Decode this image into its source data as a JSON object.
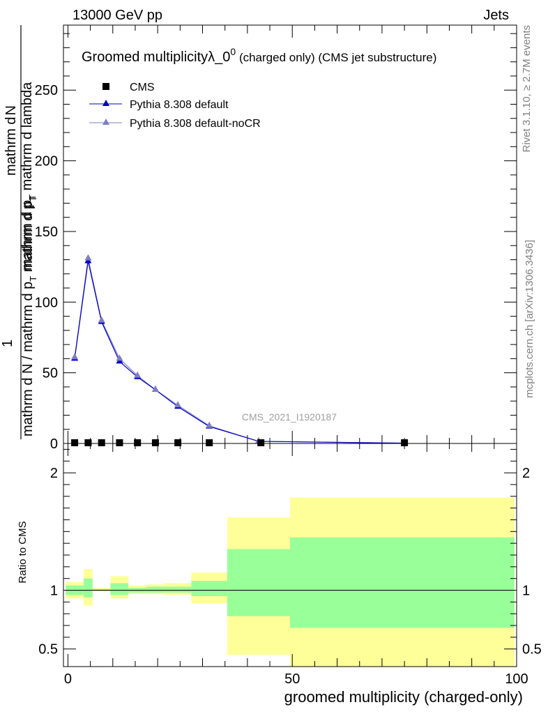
{
  "header": {
    "left": "13000 GeV pp",
    "right": "Jets"
  },
  "side_labels": {
    "rivet": "Rivet 3.1.10, ≥ 2.7M events",
    "mcplots": "mcplots.cern.ch [arXiv:1306.3436]"
  },
  "chart_data": [
    {
      "type": "line",
      "title_main": "Groomed multiplicityλ_0",
      "title_sup": "0",
      "title_rest": " (charged only) (CMS jet substructure)",
      "watermark": "CMS_2021_I1920187",
      "ylabel_top_1": "mathrm d",
      "ylabel_top_2": "N",
      "ylabel_top_3": "mathrm d p",
      "ylabel_top_3_sub": "T",
      "ylabel_top_4": "mathrm d lambda",
      "ylabel_one": "1",
      "ylabel_bottom": "mathrm d N / mathrm d p",
      "ylabel_bottom_sub": "T",
      "ylabel_bottom_2": "mathrm d p",
      "ylabel_bottom_2_sub": "T",
      "xlim": [
        -1,
        100
      ],
      "ylim": [
        0,
        296
      ],
      "yticks": [
        "0",
        "50",
        "100",
        "150",
        "200",
        "250"
      ],
      "xticks": [
        "0",
        "50",
        "100"
      ],
      "legend": [
        {
          "label": "CMS",
          "color": "#000000",
          "marker": "square"
        },
        {
          "label": "Pythia 8.308 default",
          "color": "#0000cc",
          "marker": "triangle"
        },
        {
          "label": "Pythia 8.308 default-noCR",
          "color": "#7f7fbf",
          "marker": "triangle"
        }
      ],
      "series": [
        {
          "name": "CMS",
          "x": [
            1.5,
            4.5,
            7.5,
            11.5,
            15.5,
            19.5,
            24.5,
            31.5,
            43,
            75
          ],
          "y": [
            0.5,
            0.5,
            0.5,
            0.5,
            0.5,
            0.5,
            0.5,
            0.5,
            0.5,
            0.5
          ]
        },
        {
          "name": "Pythia 8.308 default",
          "x": [
            1.5,
            4.5,
            7.5,
            11.5,
            15.5,
            19.5,
            24.5,
            31.5,
            42.5,
            75
          ],
          "y": [
            60,
            129,
            86,
            58,
            47,
            38,
            26,
            12,
            1.5,
            0.2
          ]
        },
        {
          "name": "Pythia 8.308 default-noCR",
          "x": [
            1.5,
            4.5,
            7.5,
            11.5,
            15.5,
            19.5,
            24.5,
            31.5,
            42.5,
            75
          ],
          "y": [
            61,
            131,
            87,
            60,
            48,
            38,
            27,
            12.5,
            1.5,
            0.2
          ]
        }
      ]
    },
    {
      "type": "area",
      "ylabel": "Ratio to CMS",
      "xlabel": "groomed multiplicity (charged-only)",
      "xlim": [
        -1,
        100
      ],
      "ylim": [
        0.35,
        2.25
      ],
      "yticks": [
        "0.5",
        "1",
        "2"
      ],
      "reference": 1,
      "bands": [
        {
          "x0": -0.5,
          "x1": 3.5,
          "y_lo": 0.93,
          "y_hi": 1.07,
          "y_lo2": 0.96,
          "y_hi2": 1.04
        },
        {
          "x0": 3.5,
          "x1": 5.5,
          "y_lo": 0.87,
          "y_hi": 1.18,
          "y_lo2": 0.94,
          "y_hi2": 1.1
        },
        {
          "x0": 5.5,
          "x1": 9.5,
          "y_lo": 0.99,
          "y_hi": 1.02,
          "y_lo2": 0.995,
          "y_hi2": 1.01
        },
        {
          "x0": 9.5,
          "x1": 13.5,
          "y_lo": 0.93,
          "y_hi": 1.12,
          "y_lo2": 0.96,
          "y_hi2": 1.06
        },
        {
          "x0": 13.5,
          "x1": 17.5,
          "y_lo": 0.97,
          "y_hi": 1.04,
          "y_lo2": 0.98,
          "y_hi2": 1.02
        },
        {
          "x0": 17.5,
          "x1": 21.5,
          "y_lo": 0.97,
          "y_hi": 1.05,
          "y_lo2": 0.98,
          "y_hi2": 1.03
        },
        {
          "x0": 21.5,
          "x1": 27.5,
          "y_lo": 0.96,
          "y_hi": 1.06,
          "y_lo2": 0.98,
          "y_hi2": 1.03
        },
        {
          "x0": 27.5,
          "x1": 35.5,
          "y_lo": 0.89,
          "y_hi": 1.15,
          "y_lo2": 0.95,
          "y_hi2": 1.08
        },
        {
          "x0": 35.5,
          "x1": 49.5,
          "y_lo": 0.45,
          "y_hi": 1.62,
          "y_lo2": 0.78,
          "y_hi2": 1.35
        },
        {
          "x0": 49.5,
          "x1": 99.5,
          "y_lo": 0.33,
          "y_hi": 1.79,
          "y_lo2": 0.68,
          "y_hi2": 1.45
        }
      ]
    }
  ]
}
